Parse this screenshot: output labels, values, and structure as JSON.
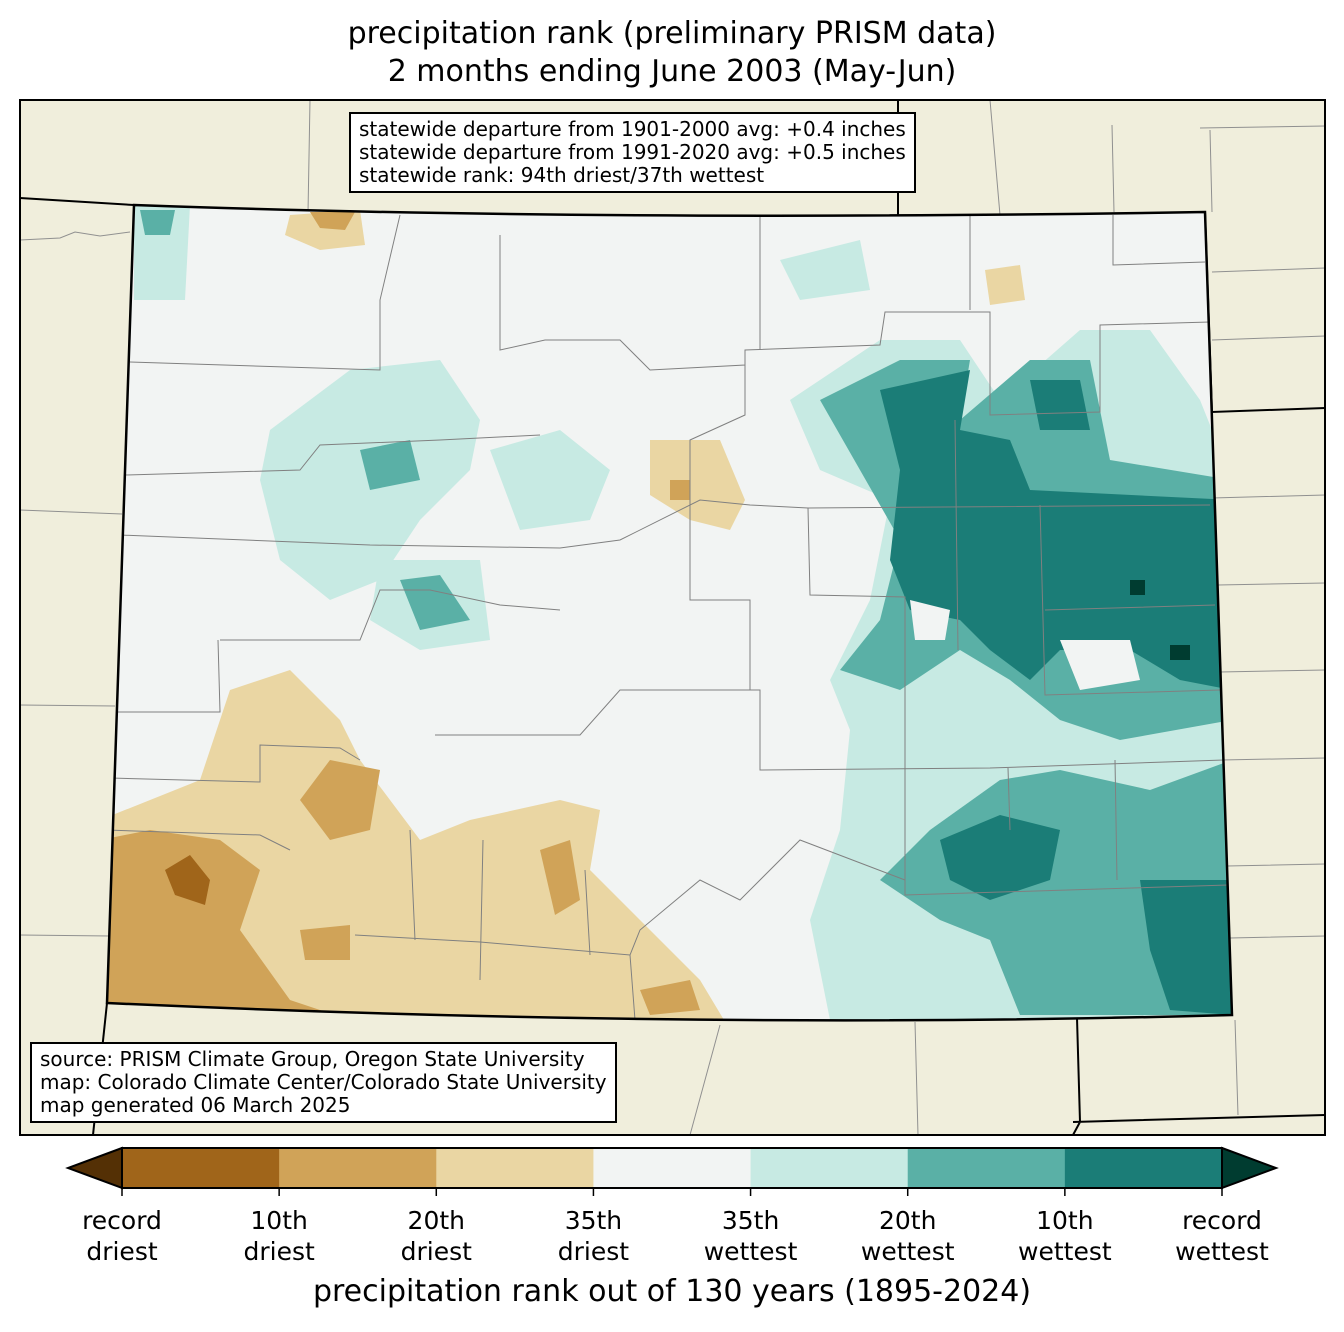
{
  "title": {
    "line1": "precipitation rank (preliminary PRISM data)",
    "line2": "2 months ending June 2003 (May-Jun)"
  },
  "stats_box": {
    "line1": "statewide departure from 1901-2000 avg: +0.4 inches",
    "line2": "statewide departure from 1991-2020 avg: +0.5 inches",
    "line3": "statewide rank: 94th driest/37th wettest"
  },
  "source_box": {
    "line1": "source: PRISM Climate Group, Oregon State University",
    "line2": "map: Colorado Climate Center/Colorado State University",
    "line3": "map generated 06 March 2025"
  },
  "colorbar": {
    "xlabel": "precipitation rank out of 130 years (1895-2024)",
    "colors": [
      "#543005",
      "#a0651a",
      "#d0a358",
      "#ead6a3",
      "#f2f4f3",
      "#c7eae3",
      "#5ab0a6",
      "#1b7d77",
      "#003c30"
    ],
    "ticks": [
      {
        "l1": "record",
        "l2": "driest"
      },
      {
        "l1": "10th",
        "l2": "driest"
      },
      {
        "l1": "20th",
        "l2": "driest"
      },
      {
        "l1": "35th",
        "l2": "driest"
      },
      {
        "l1": "35th",
        "l2": "wettest"
      },
      {
        "l1": "20th",
        "l2": "wettest"
      },
      {
        "l1": "10th",
        "l2": "wettest"
      },
      {
        "l1": "record",
        "l2": "wettest"
      }
    ]
  },
  "map_colors": {
    "land": "#f0eedc",
    "border": "#000000",
    "county": "#808080"
  }
}
